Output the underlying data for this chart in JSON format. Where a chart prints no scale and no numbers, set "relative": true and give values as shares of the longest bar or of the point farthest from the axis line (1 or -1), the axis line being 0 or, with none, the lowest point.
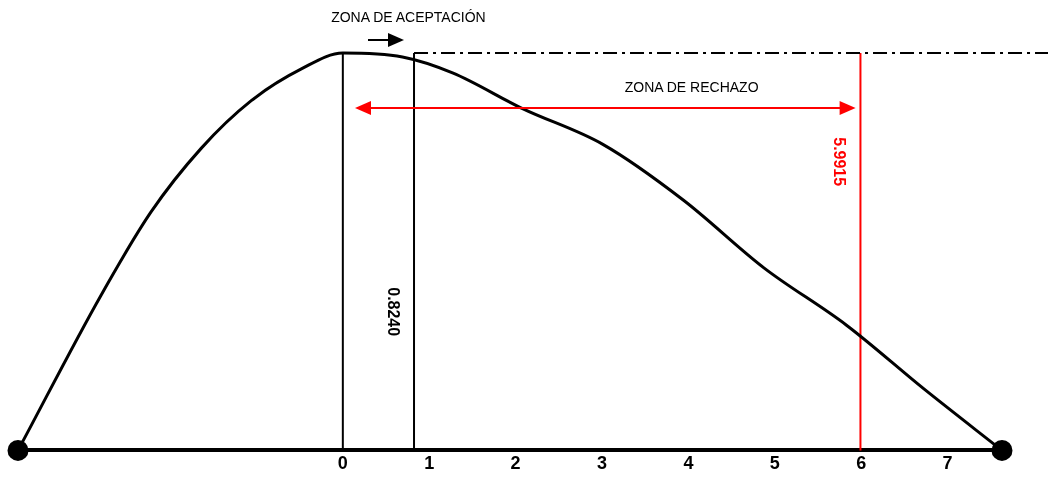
{
  "chart_data": {
    "type": "line",
    "relative": true,
    "x": [
      -3.76,
      -2.8,
      -2.22,
      -1.64,
      -1.06,
      -0.48,
      0,
      0.69,
      1.27,
      2.08,
      3.01,
      3.94,
      4.87,
      5.83,
      6.73,
      7.63
    ],
    "series": [
      {
        "color": "#000000",
        "marker": "none",
        "values": [
          0,
          0.39,
          0.6,
          0.76,
          0.88,
          0.96,
          1,
          0.99,
          0.95,
          0.86,
          0.77,
          0.63,
          0.46,
          0.315,
          0.154,
          0
        ]
      },
      {
        "type": "scatter",
        "color": "#000000",
        "marker": "circle",
        "x": [
          -3.76,
          7.63
        ],
        "values": [
          0,
          0
        ]
      }
    ],
    "xlim": [
      -3.76,
      7.63
    ],
    "xticks": [
      0,
      1,
      2,
      3,
      4,
      5,
      6,
      7
    ],
    "ref_lines": [
      {
        "axis": "x",
        "value": 0,
        "color": "#000000"
      },
      {
        "axis": "x",
        "value": 0.824,
        "label": "0.8240",
        "color": "#000000"
      },
      {
        "axis": "x",
        "value": 5.9915,
        "label": "5.9915",
        "color": "#ff0000"
      },
      {
        "axis": "y",
        "value": 1,
        "color": "#000000",
        "line_style": "dashed"
      }
    ],
    "annotations": [
      "ZONA DE ACEPTACIÓN",
      "ZONA DE RECHAZO"
    ],
    "grid": false,
    "legend": false
  }
}
